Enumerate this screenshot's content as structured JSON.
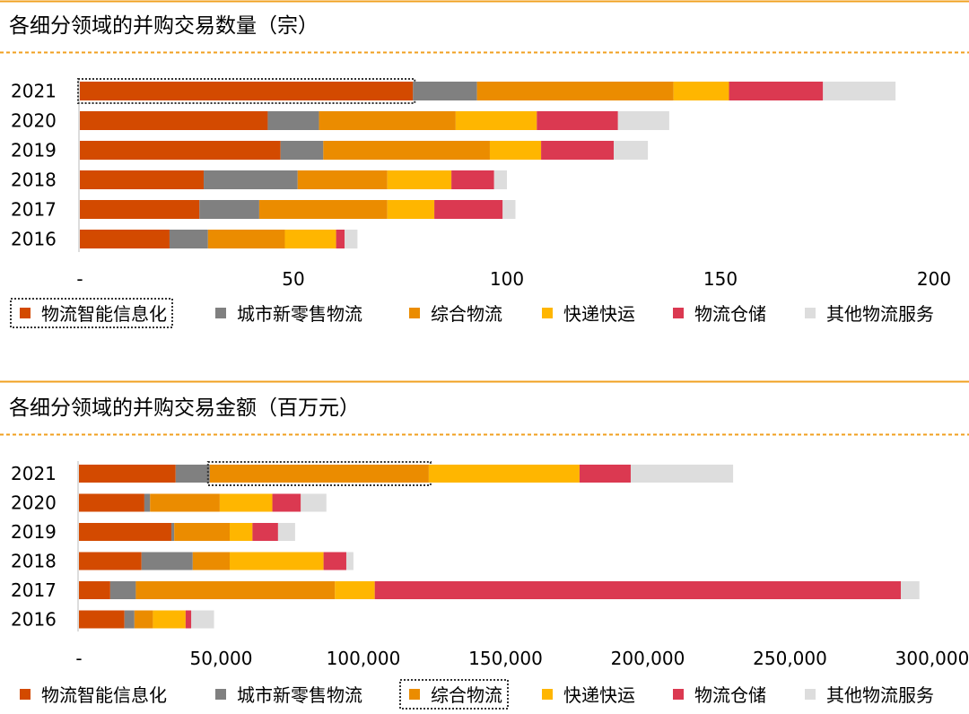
{
  "colors": {
    "accent_line": "#F0A020",
    "series": [
      "#D34A00",
      "#808080",
      "#EB8C00",
      "#FFB600",
      "#DB3951",
      "#DDDDDD"
    ]
  },
  "chart_data": [
    {
      "type": "bar",
      "orientation": "horizontal",
      "stacked": true,
      "title": "各细分领域的并购交易数量（宗）",
      "categories": [
        "2021",
        "2020",
        "2019",
        "2018",
        "2017",
        "2016"
      ],
      "series": [
        {
          "name": "物流智能信息化",
          "values": [
            78,
            44,
            47,
            29,
            28,
            21
          ]
        },
        {
          "name": "城市新零售物流",
          "values": [
            15,
            12,
            10,
            22,
            14,
            9
          ]
        },
        {
          "name": "综合物流",
          "values": [
            46,
            32,
            39,
            21,
            30,
            18
          ]
        },
        {
          "name": "快递快运",
          "values": [
            13,
            19,
            12,
            15,
            11,
            12
          ]
        },
        {
          "name": "物流仓储",
          "values": [
            22,
            19,
            17,
            10,
            16,
            2
          ]
        },
        {
          "name": "其他物流服务",
          "values": [
            17,
            12,
            8,
            3,
            3,
            3
          ]
        }
      ],
      "xlim": [
        0,
        200
      ],
      "xticks": [
        "-",
        "50",
        "100",
        "150",
        "200"
      ],
      "legend_position": "bottom",
      "highlight": {
        "category": "2021",
        "series": "物流智能信息化"
      }
    },
    {
      "type": "bar",
      "orientation": "horizontal",
      "stacked": true,
      "title": "各细分领域的并购交易金额（百万元）",
      "categories": [
        "2021",
        "2020",
        "2019",
        "2018",
        "2017",
        "2016"
      ],
      "series": [
        {
          "name": "物流智能信息化",
          "values": [
            34000,
            23000,
            32500,
            22000,
            11000,
            16000
          ]
        },
        {
          "name": "城市新零售物流",
          "values": [
            12000,
            2000,
            1000,
            18000,
            9000,
            3500
          ]
        },
        {
          "name": "综合物流",
          "values": [
            77000,
            24500,
            19500,
            13000,
            70000,
            6500
          ]
        },
        {
          "name": "快递快运",
          "values": [
            53000,
            18500,
            8000,
            33000,
            14000,
            11500
          ]
        },
        {
          "name": "物流仓储",
          "values": [
            18000,
            10000,
            9000,
            8000,
            185000,
            2000
          ]
        },
        {
          "name": "其他物流服务",
          "values": [
            36000,
            9000,
            6000,
            2500,
            6500,
            8000
          ]
        }
      ],
      "xlim": [
        0,
        300000
      ],
      "xticks": [
        "-",
        "50,000",
        "100,000",
        "150,000",
        "200,000",
        "250,000",
        "300,000"
      ],
      "legend_position": "bottom",
      "highlight": {
        "category": "2021",
        "series": "综合物流"
      }
    }
  ]
}
